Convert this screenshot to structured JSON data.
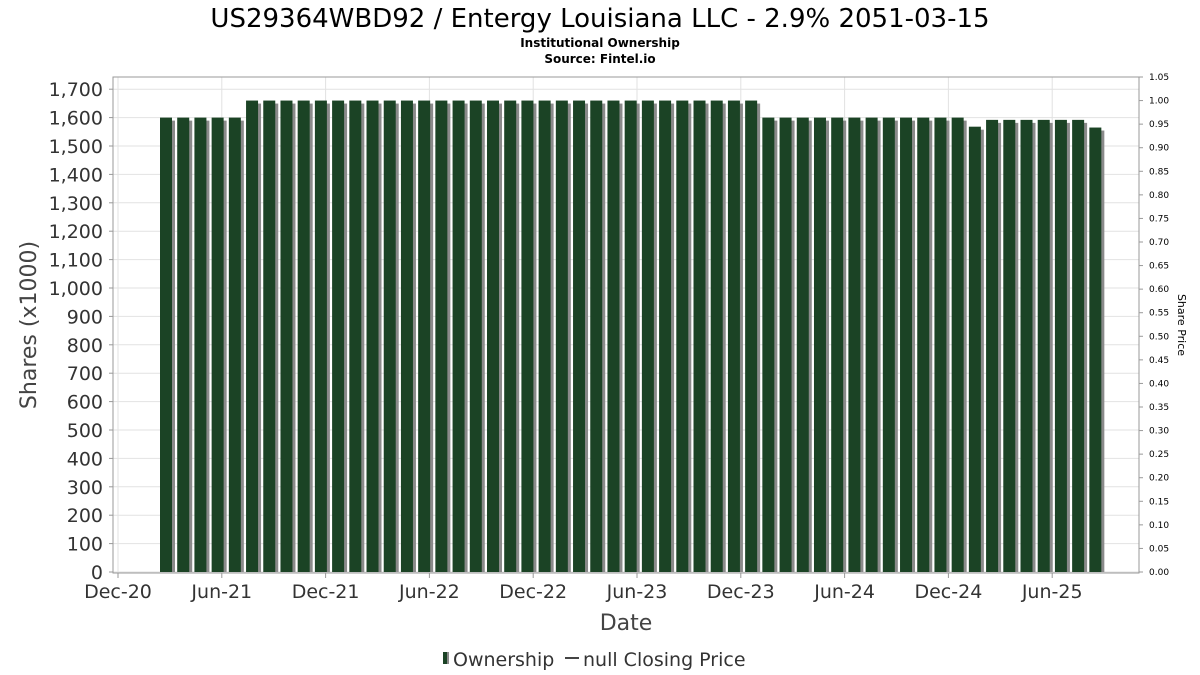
{
  "colors": {
    "bar": "#1b4325",
    "bar_shadow": "#8a8a8a",
    "grid": "#e2e2e2",
    "plot_border": "#999999"
  },
  "chart_data": {
    "type": "bar",
    "title": "US29364WBD92 / Entergy Louisiana LLC - 2.9% 2051-03-15",
    "subtitle": "Institutional Ownership",
    "source": "Source: Fintel.io",
    "xlabel": "Date",
    "ylabel": "Shares (x1000)",
    "y2label": "Share Price",
    "ylim": [
      0,
      1750
    ],
    "y2lim": [
      0,
      1.05
    ],
    "grid": true,
    "x_tick_labels": [
      "Dec-20",
      "Jun-21",
      "Dec-21",
      "Jun-22",
      "Dec-22",
      "Jun-23",
      "Dec-23",
      "Jun-24",
      "Dec-24",
      "Jun-25"
    ],
    "y_tick_labels": [
      "0",
      "100",
      "200",
      "300",
      "400",
      "500",
      "600",
      "700",
      "800",
      "900",
      "1,000",
      "1,100",
      "1,200",
      "1,300",
      "1,400",
      "1,500",
      "1,600",
      "1,700"
    ],
    "y2_tick_labels": [
      "0.00",
      "0.05",
      "0.10",
      "0.15",
      "0.20",
      "0.25",
      "0.30",
      "0.35",
      "0.40",
      "0.45",
      "0.50",
      "0.55",
      "0.60",
      "0.65",
      "0.70",
      "0.75",
      "0.80",
      "0.85",
      "0.90",
      "0.95",
      "1.00",
      "1.05"
    ],
    "series": [
      {
        "name": "Ownership",
        "values": [
          1600,
          1600,
          1600,
          1600,
          1600,
          1660,
          1660,
          1660,
          1660,
          1660,
          1660,
          1660,
          1660,
          1660,
          1660,
          1660,
          1660,
          1660,
          1660,
          1660,
          1660,
          1660,
          1660,
          1660,
          1660,
          1660,
          1660,
          1660,
          1660,
          1660,
          1660,
          1660,
          1660,
          1660,
          1660,
          1600,
          1600,
          1600,
          1600,
          1600,
          1600,
          1600,
          1600,
          1600,
          1600,
          1600,
          1600,
          1568,
          1592,
          1592,
          1592,
          1592,
          1592,
          1592,
          1565
        ]
      }
    ],
    "legend": {
      "position": "bottom",
      "items": [
        {
          "label": "Ownership",
          "marker": "bar"
        },
        {
          "label": "null Closing Price",
          "marker": "line"
        }
      ]
    }
  }
}
